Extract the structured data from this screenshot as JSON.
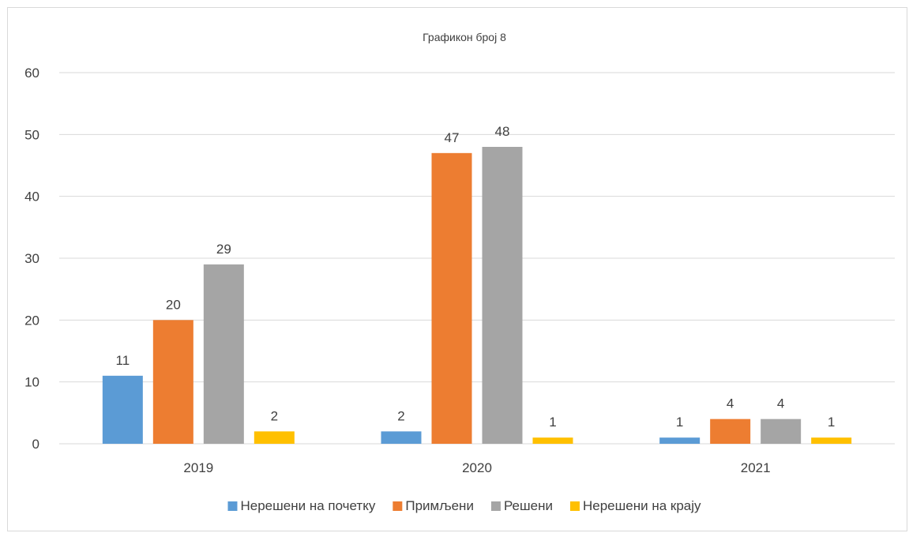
{
  "chart_data": {
    "type": "bar",
    "title": "Графикон број 8",
    "categories": [
      "2019",
      "2020",
      "2021"
    ],
    "series": [
      {
        "name": "Нерешени на почетку",
        "color": "#5b9bd5",
        "values": [
          11,
          2,
          1
        ]
      },
      {
        "name": "Примљени",
        "color": "#ed7d31",
        "values": [
          20,
          47,
          4
        ]
      },
      {
        "name": "Решени",
        "color": "#a5a5a5",
        "values": [
          29,
          48,
          4
        ]
      },
      {
        "name": "Нерешени на крају",
        "color": "#ffc000",
        "values": [
          2,
          1,
          1
        ]
      }
    ],
    "yticks": [
      "0",
      "10",
      "20",
      "30",
      "40",
      "50",
      "60"
    ],
    "ylim": [
      0,
      60
    ],
    "grid": true,
    "data_labels": true,
    "legend_position": "bottom"
  }
}
